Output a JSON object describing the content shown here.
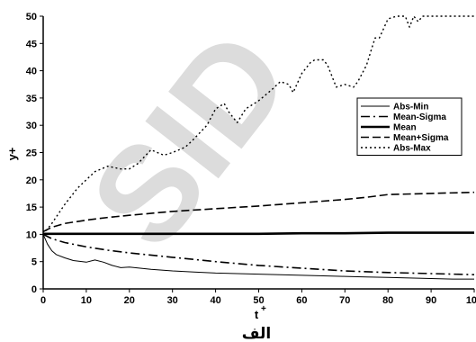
{
  "chart_data": {
    "type": "line",
    "xlabel": "t",
    "xlabel_superscript": "+",
    "ylabel": "y+",
    "caption": "الف",
    "xlim": [
      0,
      100
    ],
    "ylim": [
      0,
      50
    ],
    "xticks": [
      0,
      10,
      20,
      30,
      40,
      50,
      60,
      70,
      80,
      90,
      100
    ],
    "yticks": [
      0,
      5,
      10,
      15,
      20,
      25,
      30,
      35,
      40,
      45,
      50
    ],
    "grid": false,
    "legend_position": "right",
    "watermark": "SID",
    "series": [
      {
        "name": "Abs-Min",
        "style": "thin-solid",
        "x": [
          0,
          1,
          2,
          3,
          5,
          7,
          10,
          12,
          14,
          16,
          18,
          20,
          25,
          30,
          35,
          40,
          45,
          50,
          55,
          60,
          65,
          70,
          75,
          80,
          85,
          90,
          95,
          100
        ],
        "y": [
          10,
          8.2,
          7,
          6.3,
          5.7,
          5.2,
          4.9,
          5.3,
          4.9,
          4.3,
          3.9,
          4.0,
          3.6,
          3.3,
          3.1,
          2.9,
          2.8,
          2.7,
          2.6,
          2.5,
          2.4,
          2.3,
          2.2,
          2.1,
          2.0,
          1.9,
          1.8,
          1.8
        ]
      },
      {
        "name": "Mean-Sigma",
        "style": "dash-dot",
        "x": [
          0,
          2,
          5,
          10,
          15,
          20,
          30,
          40,
          50,
          60,
          70,
          80,
          90,
          100
        ],
        "y": [
          10,
          9.2,
          8.5,
          7.7,
          7.1,
          6.6,
          5.8,
          5.0,
          4.3,
          3.8,
          3.3,
          3.0,
          2.8,
          2.6
        ]
      },
      {
        "name": "Mean",
        "style": "thick-solid",
        "x": [
          0,
          10,
          20,
          30,
          40,
          50,
          60,
          70,
          80,
          90,
          100
        ],
        "y": [
          10.1,
          10.1,
          10.1,
          10.1,
          10.1,
          10.1,
          10.2,
          10.2,
          10.3,
          10.3,
          10.3
        ]
      },
      {
        "name": "Mean+Sigma",
        "style": "long-dash",
        "x": [
          0,
          2,
          5,
          10,
          15,
          20,
          30,
          40,
          50,
          60,
          70,
          75,
          80,
          90,
          100
        ],
        "y": [
          10.5,
          11.3,
          12.0,
          12.6,
          13.1,
          13.5,
          14.2,
          14.7,
          15.2,
          15.8,
          16.4,
          16.8,
          17.3,
          17.5,
          17.7
        ]
      },
      {
        "name": "Abs-Max",
        "style": "dotted",
        "x": [
          0,
          2,
          5,
          8,
          10,
          12,
          15,
          18,
          20,
          22,
          25,
          28,
          30,
          33,
          35,
          38,
          40,
          42,
          43,
          45,
          47,
          50,
          53,
          55,
          57,
          58,
          60,
          62,
          63,
          65,
          66,
          67,
          68,
          70,
          72,
          73,
          75,
          76,
          77,
          78,
          80,
          82,
          84,
          85,
          86,
          87,
          88,
          90,
          91,
          93,
          95,
          100
        ],
        "y": [
          10,
          12,
          15.5,
          18.5,
          20,
          21.5,
          22.5,
          22,
          22,
          23,
          25.5,
          24.5,
          25,
          26,
          27.5,
          30,
          33,
          34,
          32.5,
          30.5,
          33,
          34.5,
          36.5,
          38,
          37.5,
          36,
          39.5,
          41.5,
          42,
          42,
          41,
          39,
          37,
          37.5,
          37,
          38,
          41,
          43.5,
          46,
          46,
          49.5,
          50,
          50,
          48,
          50,
          49,
          50,
          50,
          50,
          50,
          50,
          50
        ]
      }
    ]
  }
}
